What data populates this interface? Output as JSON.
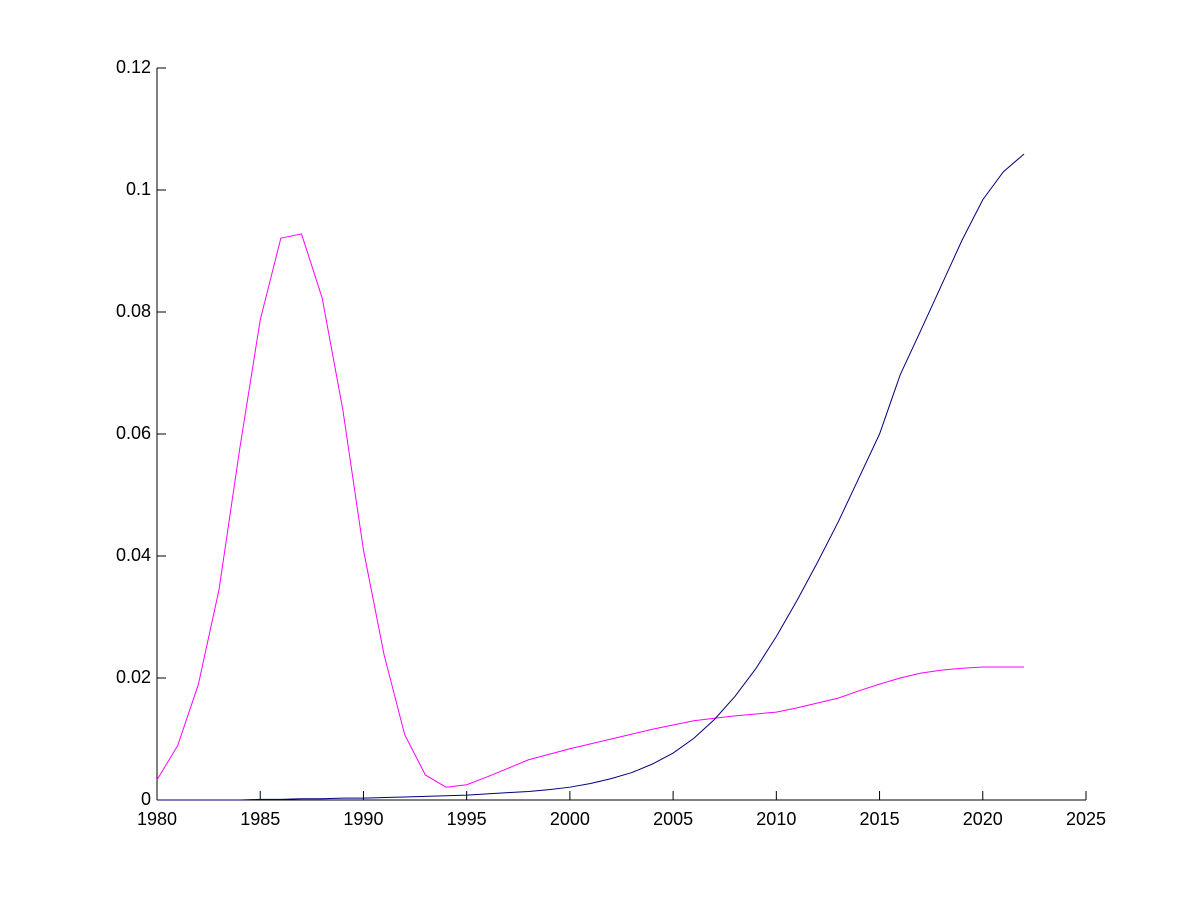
{
  "chart_data": {
    "type": "line",
    "x": [
      1980,
      1981,
      1982,
      1983,
      1984,
      1985,
      1986,
      1987,
      1988,
      1989,
      1990,
      1991,
      1992,
      1993,
      1994,
      1995,
      1996,
      1997,
      1998,
      1999,
      2000,
      2001,
      2002,
      2003,
      2004,
      2005,
      2006,
      2007,
      2008,
      2009,
      2010,
      2011,
      2012,
      2013,
      2014,
      2015,
      2016,
      2017,
      2018,
      2019,
      2020,
      2021,
      2022
    ],
    "series": [
      {
        "color": "#ff00ff",
        "values": [
          0.0033,
          0.0089,
          0.0189,
          0.0344,
          0.0574,
          0.0787,
          0.0921,
          0.0928,
          0.0823,
          0.064,
          0.041,
          0.0238,
          0.0107,
          0.0041,
          0.0021,
          0.0025,
          0.0038,
          0.0052,
          0.0066,
          0.0075,
          0.0084,
          0.0092,
          0.01,
          0.0108,
          0.0116,
          0.0123,
          0.013,
          0.0134,
          0.0138,
          0.0141,
          0.0144,
          0.0151,
          0.0159,
          0.0167,
          0.0179,
          0.019,
          0.02,
          0.0208,
          0.0213,
          0.0216,
          0.0218,
          0.0218,
          0.0218
        ]
      },
      {
        "color": "#000080",
        "values": [
          0,
          0,
          0,
          0,
          0,
          0.0001,
          0.0001,
          0.0002,
          0.0002,
          0.0003,
          0.0003,
          0.0004,
          0.0005,
          0.0006,
          0.0007,
          0.0008,
          0.001,
          0.0012,
          0.0014,
          0.0017,
          0.0021,
          0.0027,
          0.0035,
          0.0045,
          0.0059,
          0.0077,
          0.0101,
          0.0132,
          0.017,
          0.0215,
          0.0268,
          0.0327,
          0.039,
          0.0456,
          0.0528,
          0.06,
          0.0697,
          0.077,
          0.0844,
          0.0918,
          0.0984,
          0.103,
          0.1059
        ]
      }
    ],
    "xlim": [
      1980,
      2025
    ],
    "xticks": [
      1980,
      1985,
      1990,
      1995,
      2000,
      2005,
      2010,
      2015,
      2020,
      2025
    ],
    "ylim": [
      0,
      0.12
    ],
    "yticks": [
      0,
      0.02,
      0.04,
      0.06,
      0.08,
      0.1,
      0.12
    ]
  }
}
